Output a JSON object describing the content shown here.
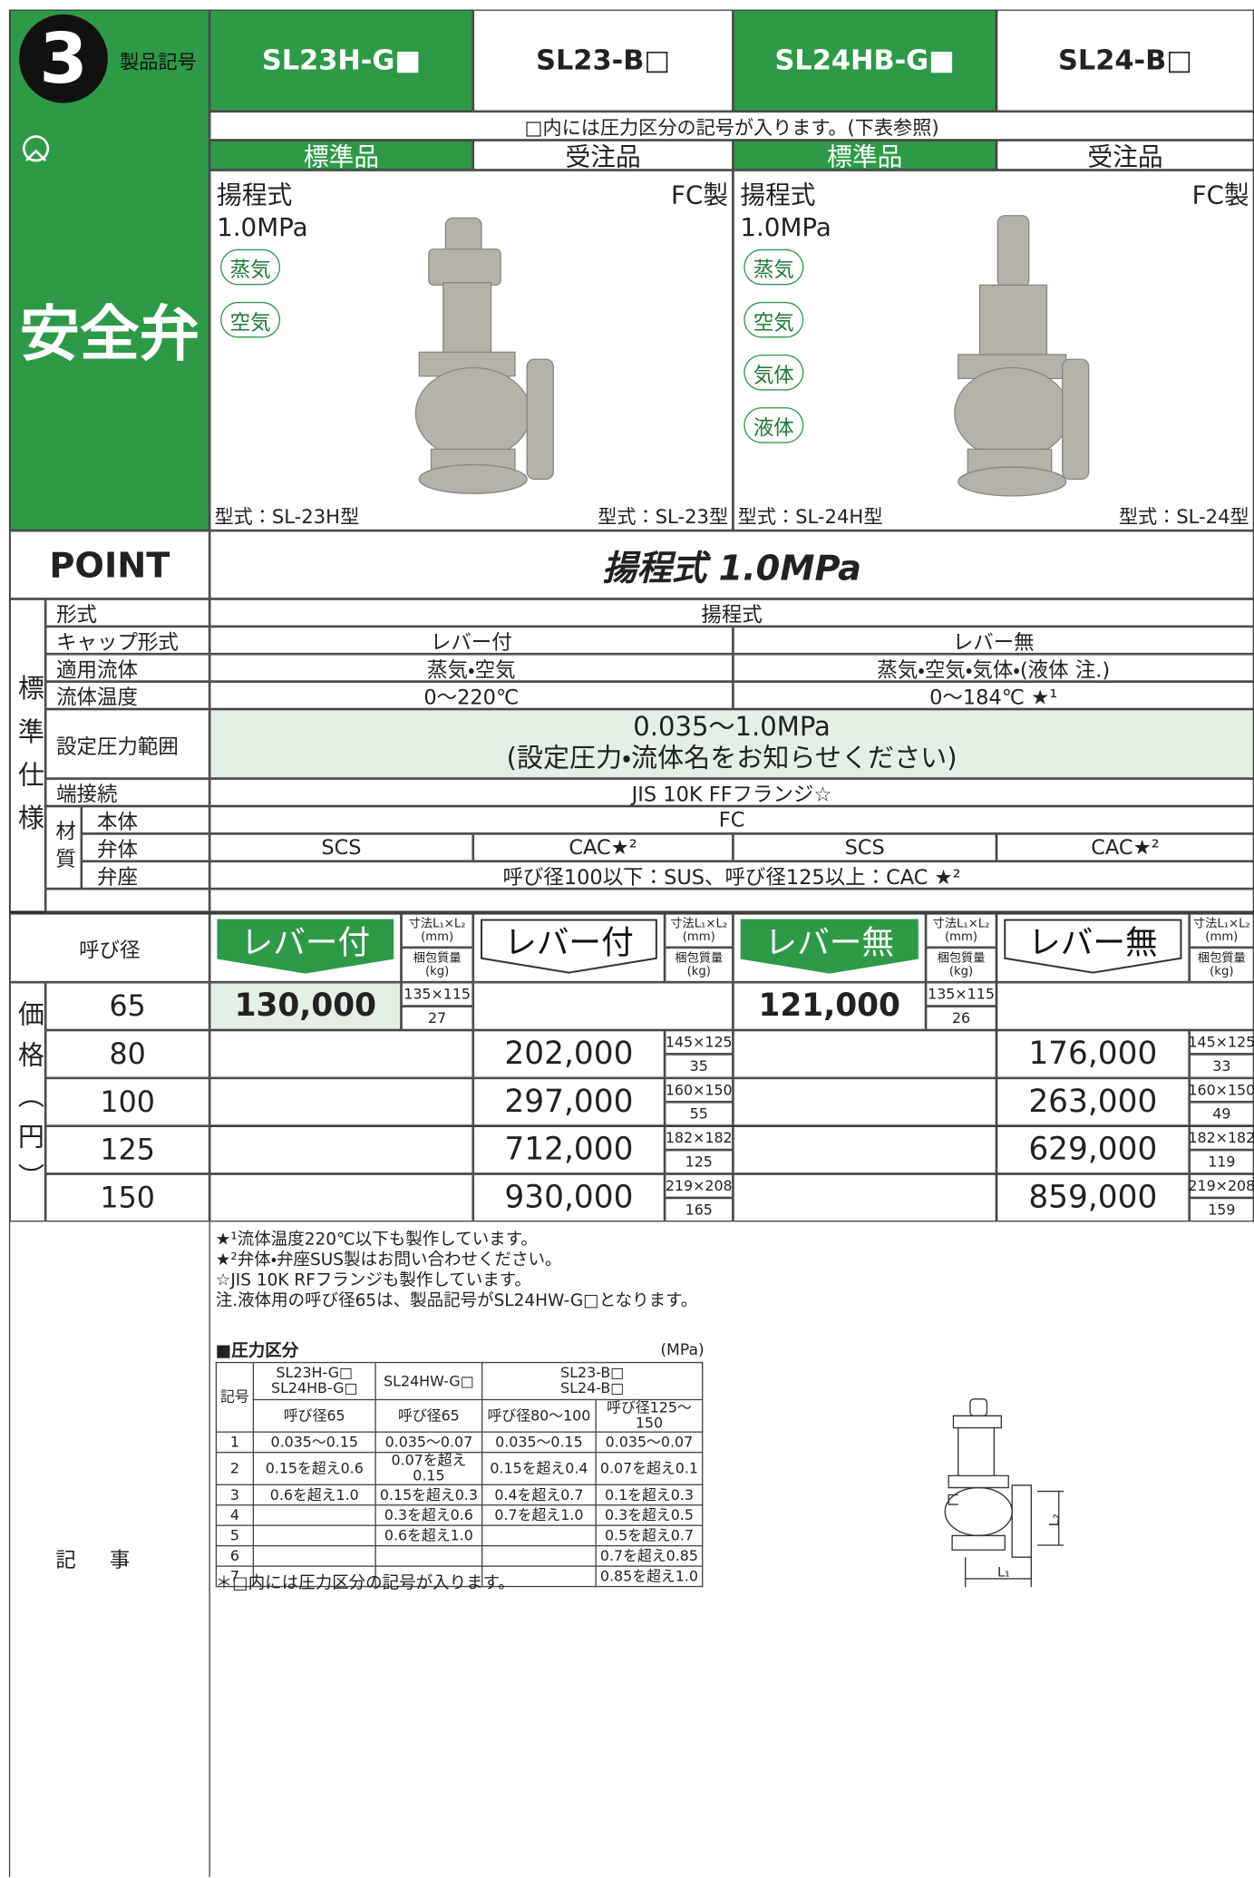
{
  "header": {
    "number": "3",
    "code_label": "製品記号",
    "products": [
      "SL23H-G■",
      "SL23-B□",
      "SL24HB-G■",
      "SL24-B□"
    ],
    "note": "□内には圧力区分の記号が入ります。(下表参照)",
    "availability": [
      "標準品",
      "受注品",
      "標準品",
      "受注品"
    ]
  },
  "category": "安全弁",
  "panels": [
    {
      "lines": [
        "揚程式",
        "1.0MPa"
      ],
      "material": "FC製",
      "fluids": [
        "蒸気",
        "空気"
      ],
      "models": [
        "型式：SL-23H型",
        "型式：SL-23型"
      ]
    },
    {
      "lines": [
        "揚程式",
        "1.0MPa"
      ],
      "material": "FC製",
      "fluids": [
        "蒸気",
        "空気",
        "気体",
        "液体"
      ],
      "models": [
        "型式：SL-24H型",
        "型式：SL-24型"
      ]
    }
  ],
  "point": {
    "label": "POINT",
    "text": "揚程式 1.0MPa"
  },
  "spec": {
    "group_label": "標準仕様",
    "rows": [
      {
        "label": "形式",
        "values": [
          "揚程式"
        ]
      },
      {
        "label": "キャップ形式",
        "values": [
          "レバー付",
          "レバー無"
        ]
      },
      {
        "label": "適用流体",
        "values": [
          "蒸気・空気",
          "蒸気・空気・気体・(液体 注.)"
        ]
      },
      {
        "label": "流体温度",
        "values": [
          "0～220℃",
          "0～184℃ ★¹"
        ]
      },
      {
        "label": "設定圧力範囲",
        "values": [
          "0.035～1.0MPa",
          "(設定圧力・流体名をお知らせください)"
        ]
      },
      {
        "label": "端接続",
        "values": [
          "JIS 10K FFフランジ☆"
        ]
      }
    ],
    "material": {
      "label": "材質",
      "rows": [
        {
          "label": "本体",
          "values": [
            "FC"
          ]
        },
        {
          "label": "弁体",
          "values": [
            "SCS",
            "CAC★²",
            "SCS",
            "CAC★²"
          ]
        },
        {
          "label": "弁座",
          "values": [
            "呼び径100以下：SUS、呼び径125以上：CAC ★²"
          ]
        }
      ]
    }
  },
  "price": {
    "group_label": "価格（円）",
    "size_label": "呼び径",
    "columns": [
      {
        "label": "レバー付",
        "dim_label": "寸法L₁×L₂",
        "dim_unit": "(mm)",
        "weight_label": "梱包質量",
        "weight_unit": "(kg)"
      },
      {
        "label": "レバー付",
        "dim_label": "寸法L₁×L₂",
        "dim_unit": "(mm)",
        "weight_label": "梱包質量",
        "weight_unit": "(kg)"
      },
      {
        "label": "レバー無",
        "dim_label": "寸法L₁×L₂",
        "dim_unit": "(mm)",
        "weight_label": "梱包質量",
        "weight_unit": "(kg)"
      },
      {
        "label": "レバー無",
        "dim_label": "寸法L₁×L₂",
        "dim_unit": "(mm)",
        "weight_label": "梱包質量",
        "weight_unit": "(kg)"
      }
    ],
    "rows": [
      {
        "size": "65",
        "cells": [
          {
            "price": "130,000",
            "dims": "135×115",
            "weight": "27"
          },
          null,
          {
            "price": "121,000",
            "dims": "135×115",
            "weight": "26"
          },
          null
        ]
      },
      {
        "size": "80",
        "cells": [
          null,
          {
            "price": "202,000",
            "dims": "145×125",
            "weight": "35"
          },
          null,
          {
            "price": "176,000",
            "dims": "145×125",
            "weight": "33"
          }
        ]
      },
      {
        "size": "100",
        "cells": [
          null,
          {
            "price": "297,000",
            "dims": "160×150",
            "weight": "55"
          },
          null,
          {
            "price": "263,000",
            "dims": "160×150",
            "weight": "49"
          }
        ]
      },
      {
        "size": "125",
        "cells": [
          null,
          {
            "price": "712,000",
            "dims": "182×182",
            "weight": "125"
          },
          null,
          {
            "price": "629,000",
            "dims": "182×182",
            "weight": "119"
          }
        ]
      },
      {
        "size": "150",
        "cells": [
          null,
          {
            "price": "930,000",
            "dims": "219×208",
            "weight": "165"
          },
          null,
          {
            "price": "859,000",
            "dims": "219×208",
            "weight": "159"
          }
        ]
      }
    ]
  },
  "notes": {
    "label": "記事",
    "lines": [
      "★¹流体温度220℃以下も製作しています。",
      "★²弁体・弁座SUS製はお問い合わせください。",
      "☆JIS 10K RFフランジも製作しています。",
      "注.液体用の呼び径65は、製品記号がSL24HW-G□となります。"
    ],
    "pressure_table": {
      "title": "■圧力区分",
      "unit": "(MPa)",
      "code_label": "記号",
      "columns": [
        {
          "name": [
            "SL23H-G□",
            "SL24HB-G□"
          ],
          "sizes": [
            "呼び径65"
          ]
        },
        {
          "name": [
            "SL24HW-G□"
          ],
          "sizes": [
            "呼び径65"
          ]
        },
        {
          "name": [
            "SL23-B□",
            "SL24-B□"
          ],
          "sizes": [
            "呼び径80～100",
            "呼び径125～150"
          ]
        }
      ],
      "rows": [
        [
          "1",
          "0.035～0.15",
          "0.035～0.07",
          "0.035～0.15",
          "0.035～0.07"
        ],
        [
          "2",
          "0.15を超え0.6",
          "0.07を超え0.15",
          "0.15を超え0.4",
          "0.07を超え0.1"
        ],
        [
          "3",
          "0.6を超え1.0",
          "0.15を超え0.3",
          "0.4を超え0.7",
          "0.1を超え0.3"
        ],
        [
          "4",
          null,
          "0.3を超え0.6",
          "0.7を超え1.0",
          "0.3を超え0.5"
        ],
        [
          "5",
          null,
          "0.6を超え1.0",
          null,
          "0.5を超え0.7"
        ],
        [
          "6",
          null,
          null,
          null,
          "0.7を超え0.85"
        ],
        [
          "7",
          null,
          null,
          null,
          "0.85を超え1.0"
        ]
      ]
    },
    "footnote": "＊□内には圧力区分の記号が入ります。",
    "diagram_labels": [
      "L₁",
      "L₂"
    ]
  }
}
